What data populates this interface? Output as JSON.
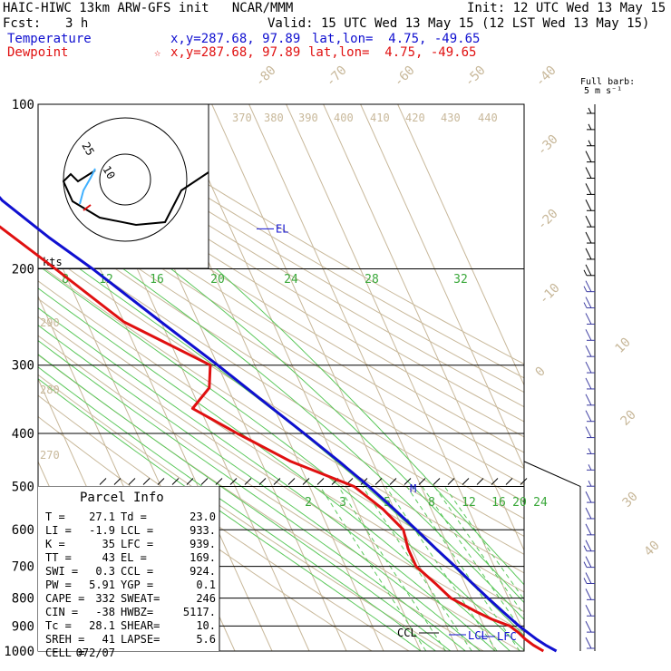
{
  "header": {
    "title": "HAIC-HIWC 13km ARW-GFS init   NCAR/MMM",
    "init": "Init: 12 UTC Wed 13 May 15",
    "fcst_label": "Fcst:",
    "fcst_value": "3 h",
    "valid": "Valid: 15 UTC Wed 13 May 15 (12 LST Wed 13 May 15)"
  },
  "legend": {
    "temperature": {
      "label": "Temperature",
      "xy": "x,y=287.68, 97.89",
      "latlon": "lat,lon=  4.75, -49.65",
      "color": "#1010d0"
    },
    "dewpoint": {
      "label": "Dewpoint",
      "marker": "☆",
      "xy": "x,y=287.68, 97.89",
      "latlon": "lat,lon=  4.75, -49.65",
      "color": "#e01010"
    }
  },
  "barb_legend": {
    "line1": "Full barb:",
    "line2": "5 m s⁻¹"
  },
  "hodograph": {
    "units": "kts",
    "ring_labels": [
      "25",
      "10"
    ]
  },
  "parcel_info": {
    "title": "Parcel Info",
    "rows": [
      [
        "T   =",
        "27.1",
        "Td =",
        "23.0"
      ],
      [
        "LI  =",
        "-1.9",
        "LCL =",
        "933."
      ],
      [
        "K   =",
        "35",
        "LFC =",
        "939."
      ],
      [
        "TT  =",
        "43",
        "EL  =",
        "169."
      ],
      [
        "SWI =",
        "0.3",
        "CCL =",
        "924."
      ],
      [
        "PW  =",
        "5.91",
        "YGP =",
        "0.1"
      ],
      [
        "CAPE =",
        "332",
        "SWEAT=",
        "246"
      ],
      [
        "CIN  =",
        "-38",
        "HWBZ=",
        "5117."
      ],
      [
        "Tc  =",
        "28.1",
        "SHEAR=",
        "10."
      ],
      [
        "SREH =",
        "41",
        "LAPSE=",
        "5.6"
      ],
      [
        "CELL =",
        "072/07",
        "",
        ""
      ]
    ]
  },
  "chart_data": {
    "type": "line",
    "title": "Skew-T log-P sounding",
    "pressure_levels": [
      100,
      200,
      300,
      400,
      500,
      600,
      700,
      800,
      900,
      1000
    ],
    "isotherm_labels": [
      "-80",
      "-70",
      "-60",
      "-50",
      "-40",
      "-30",
      "-20",
      "-10",
      "0",
      "10",
      "20",
      "30",
      "40"
    ],
    "dry_adiabat_labels": [
      "370",
      "380",
      "390",
      "400",
      "410",
      "420",
      "430",
      "440",
      "290",
      "280",
      "270"
    ],
    "moist_adiabat_labels_upper": [
      "8",
      "12",
      "16",
      "20",
      "24",
      "28",
      "32"
    ],
    "mixing_ratio_labels": [
      "2",
      "3",
      "5",
      "8",
      "12",
      "16",
      "20",
      "24"
    ],
    "annotations": [
      "EL",
      "M",
      "CCL",
      "LCL",
      "LFC"
    ],
    "series": [
      {
        "name": "Temperature",
        "color": "#1010d0",
        "p": [
          1000,
          975,
          950,
          925,
          900,
          850,
          800,
          750,
          700,
          650,
          600,
          550,
          500,
          450,
          400,
          350,
          300,
          250,
          200,
          175,
          150,
          125,
          100
        ],
        "t": [
          26.5,
          24.3,
          22.5,
          21.0,
          19.5,
          17.0,
          14.5,
          12.0,
          9.5,
          6.5,
          3.5,
          0.0,
          -4.0,
          -9.0,
          -15.0,
          -22.0,
          -30.0,
          -40.0,
          -52.0,
          -60.0,
          -68.0,
          -73.0,
          -75.0
        ]
      },
      {
        "name": "Dewpoint",
        "color": "#e01010",
        "p": [
          1000,
          975,
          950,
          925,
          900,
          875,
          850,
          800,
          750,
          700,
          650,
          600,
          550,
          500,
          450,
          400,
          360,
          330,
          300,
          250,
          200,
          150,
          100
        ],
        "t": [
          23.0,
          21.0,
          19.5,
          18.5,
          17.0,
          13.0,
          10.0,
          4.5,
          2.0,
          -1.0,
          -1.0,
          0.0,
          -3.0,
          -8.0,
          -22.0,
          -33.0,
          -42.0,
          -35.0,
          -32.0,
          -50.0,
          -62.0,
          -78.0,
          -85.0
        ]
      }
    ],
    "wind_barbs_kt": [
      5,
      5,
      8,
      10,
      10,
      10,
      10,
      10,
      12,
      12,
      15,
      15,
      15,
      12,
      10,
      10,
      10,
      10,
      10,
      10,
      10,
      8,
      5,
      5,
      10,
      12,
      12,
      15,
      15,
      15,
      12,
      12,
      10,
      10
    ]
  }
}
